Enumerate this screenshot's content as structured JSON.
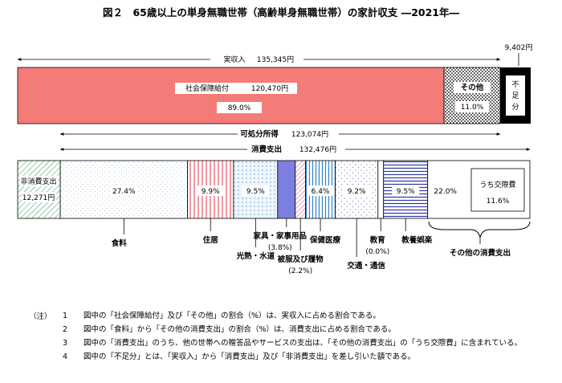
{
  "title": "図２　65歳以上の単身無職世帯（高齢単身無職世帯）の家計収支 ―2021年―",
  "chart_data": {
    "type": "bar",
    "income": {
      "label": "実収入",
      "value": 135345,
      "value_text": "135,345円",
      "components": [
        {
          "name": "社会保障給付",
          "value": 120470,
          "value_text": "120,470円",
          "share_text": "89.0%",
          "color": "#f37c78"
        },
        {
          "name": "その他",
          "share_text": "11.0%",
          "color": "#ffffff"
        }
      ]
    },
    "deficit": {
      "name": "不足分",
      "value": 9402,
      "value_text": "9,402円",
      "color": "#000000"
    },
    "disposable_income": {
      "label": "可処分所得",
      "value": 123074,
      "value_text": "123,074円"
    },
    "consumption": {
      "label": "消費支出",
      "value": 132476,
      "value_text": "132,476円"
    },
    "non_consumption": {
      "name": "非消費支出",
      "value": 12271,
      "value_text": "12,271円"
    },
    "expenditure": [
      {
        "name": "食料",
        "share": 27.4,
        "share_text": "27.4%"
      },
      {
        "name": "住居",
        "share": 9.9,
        "share_text": "9.9%"
      },
      {
        "name": "光熱・水道",
        "share": 9.5,
        "share_text": "9.5%"
      },
      {
        "name": "家具・家事用品",
        "share": 3.8,
        "share_text": "(3.8%)"
      },
      {
        "name": "被服及び履物",
        "share": 2.2,
        "share_text": "(2.2%)"
      },
      {
        "name": "保健医療",
        "share": 6.4,
        "share_text": "6.4%"
      },
      {
        "name": "交通・通信",
        "share": 9.2,
        "share_text": "9.2%"
      },
      {
        "name": "教育",
        "share": 0.0,
        "share_text": "(0.0%)"
      },
      {
        "name": "教養娯楽",
        "share": 9.5,
        "share_text": "9.5%"
      },
      {
        "name": "その他の消費支出",
        "share": 22.0,
        "share_text": "22.0%"
      }
    ],
    "sub_item": {
      "name": "うち交際費",
      "share": 11.6,
      "share_text": "11.6%"
    }
  },
  "notes_label": "（注）",
  "notes": [
    {
      "num": "1",
      "text": "図中の「社会保障給付」及び「その他」の割合（%）は、実収入に占める割合である。"
    },
    {
      "num": "2",
      "text": "図中の「食料」から「その他の消費支出」の割合（%）は、消費支出に占める割合である。"
    },
    {
      "num": "3",
      "text": "図中の「消費支出」のうち、他の世帯への贈答品やサービスの支出は、「その他の消費支出」の「うち交際費」に含まれている。"
    },
    {
      "num": "4",
      "text": "図中の「不足分」とは、「実収入」から「消費支出」及び「非消費支出」を差し引いた額である。"
    }
  ]
}
